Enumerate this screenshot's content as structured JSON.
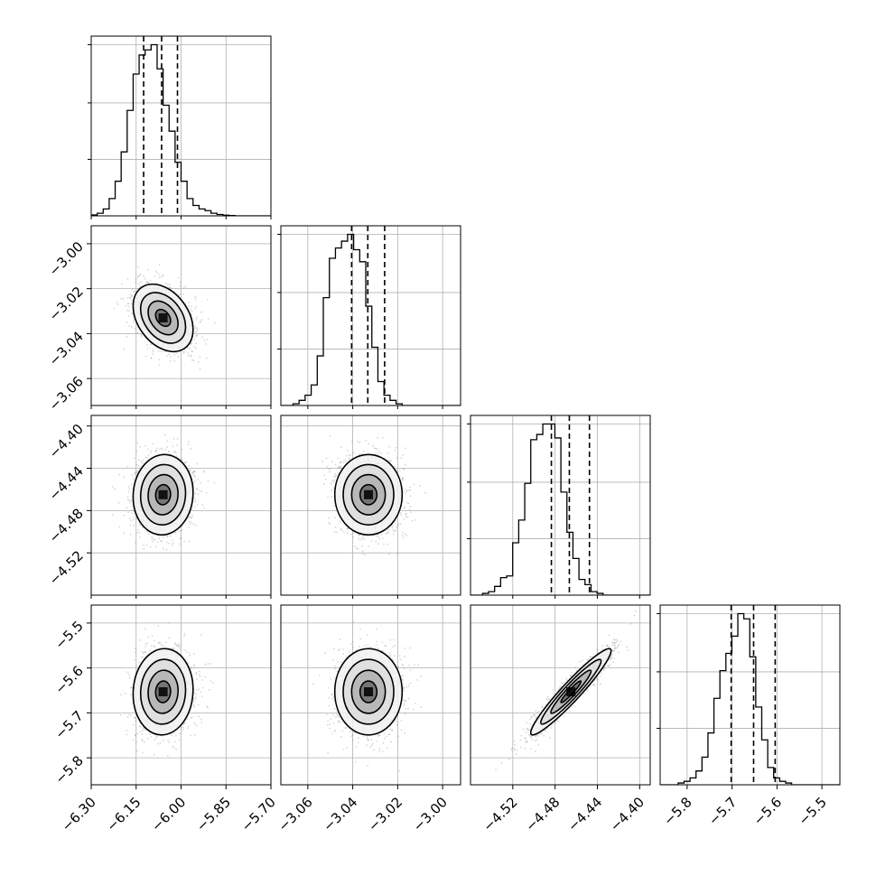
{
  "chart_data": {
    "type": "corner",
    "n_params": 4,
    "grid": true,
    "params": [
      {
        "range": [
          -6.3,
          -5.7
        ],
        "ticks": [
          "-6.30",
          "-6.15",
          "-6.00",
          "-5.85",
          "-5.70"
        ],
        "tick_values": [
          -6.3,
          -6.15,
          -6.0,
          -5.85,
          -5.7
        ],
        "quantiles": [
          -6.125,
          -6.065,
          -6.012
        ],
        "mean": -6.06,
        "sd": 0.05
      },
      {
        "range": [
          -3.072,
          -2.992
        ],
        "ticks": [
          "-3.06",
          "-3.04",
          "-3.02",
          "-3.00"
        ],
        "tick_values": [
          -3.06,
          -3.04,
          -3.02,
          -3.0
        ],
        "quantiles": [
          -3.0405,
          -3.0333,
          -3.0258
        ],
        "mean": -3.033,
        "sd": 0.0075
      },
      {
        "range": [
          -4.56,
          -4.39
        ],
        "ticks": [
          "-4.52",
          "-4.48",
          "-4.44",
          "-4.40"
        ],
        "tick_values": [
          -4.52,
          -4.48,
          -4.44,
          -4.4
        ],
        "quantiles": [
          -4.4835,
          -4.4665,
          -4.4475
        ],
        "mean": -4.465,
        "sd": 0.019
      },
      {
        "range": [
          -5.86,
          -5.46
        ],
        "ticks": [
          "-5.8",
          "-5.7",
          "-5.6",
          "-5.5"
        ],
        "tick_values": [
          -5.8,
          -5.7,
          -5.6,
          -5.5
        ],
        "quantiles": [
          -5.702,
          -5.652,
          -5.604
        ],
        "mean": -5.653,
        "sd": 0.048
      }
    ],
    "histograms": [
      {
        "param": 0,
        "bin_start": -6.3,
        "bin_width": 0.02,
        "counts": [
          0.005,
          0.015,
          0.04,
          0.1,
          0.2,
          0.37,
          0.61,
          0.82,
          0.93,
          0.96,
          0.99,
          0.85,
          0.64,
          0.49,
          0.31,
          0.2,
          0.1,
          0.06,
          0.04,
          0.03,
          0.015,
          0.008,
          0.004,
          0.002,
          0.0,
          0.0,
          0.0,
          0.0,
          0.0,
          0.0
        ]
      },
      {
        "param": 1,
        "bin_start": -3.072,
        "bin_width": 0.0027,
        "counts": [
          0.0,
          0.0,
          0.01,
          0.03,
          0.06,
          0.12,
          0.29,
          0.63,
          0.86,
          0.92,
          0.96,
          1.0,
          0.91,
          0.84,
          0.58,
          0.34,
          0.14,
          0.06,
          0.03,
          0.01,
          0.0,
          0.0,
          0.0,
          0.0,
          0.0,
          0.0,
          0.0,
          0.0,
          0.0,
          0.0
        ]
      },
      {
        "param": 2,
        "bin_start": -4.56,
        "bin_width": 0.0057,
        "counts": [
          0.0,
          0.0,
          0.01,
          0.02,
          0.05,
          0.1,
          0.11,
          0.3,
          0.43,
          0.64,
          0.89,
          0.92,
          0.98,
          0.98,
          0.9,
          0.59,
          0.36,
          0.21,
          0.09,
          0.06,
          0.02,
          0.01,
          0.0,
          0.0,
          0.0,
          0.0,
          0.0,
          0.0,
          0.0,
          0.0
        ]
      },
      {
        "param": 3,
        "bin_start": -5.86,
        "bin_width": 0.0133,
        "counts": [
          0.0,
          0.0,
          0.0,
          0.01,
          0.02,
          0.04,
          0.08,
          0.16,
          0.3,
          0.5,
          0.66,
          0.76,
          0.86,
          0.99,
          0.96,
          0.74,
          0.45,
          0.26,
          0.1,
          0.04,
          0.02,
          0.01,
          0.0,
          0.0,
          0.0,
          0.0,
          0.0,
          0.0,
          0.0,
          0.0
        ]
      }
    ],
    "correlations": [
      {
        "pair": [
          1,
          0
        ],
        "rho": -0.35
      },
      {
        "pair": [
          2,
          0
        ],
        "rho": 0.05
      },
      {
        "pair": [
          2,
          1
        ],
        "rho": 0.0
      },
      {
        "pair": [
          3,
          0
        ],
        "rho": 0.05
      },
      {
        "pair": [
          3,
          1
        ],
        "rho": 0.0
      },
      {
        "pair": [
          3,
          2
        ],
        "rho": 0.95
      }
    ],
    "contour_levels": [
      0.118,
      0.393,
      0.675,
      0.865
    ]
  },
  "colors": {
    "line": "#000000",
    "grid": "#b0b0b0",
    "points": "#8c8c8c",
    "axes": "#000000"
  }
}
